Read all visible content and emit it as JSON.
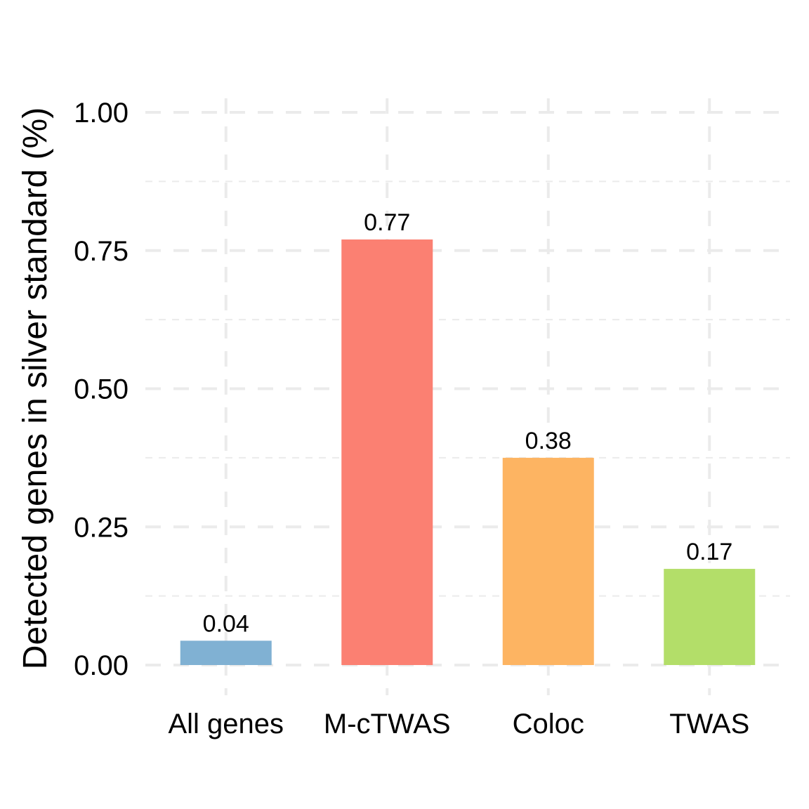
{
  "chart_data": {
    "type": "bar",
    "title": "",
    "xlabel": "",
    "ylabel": "Detected genes in silver standard (%)",
    "categories": [
      "All genes",
      "M-cTWAS",
      "Coloc",
      "TWAS"
    ],
    "values": [
      0.044,
      0.77,
      0.375,
      0.174
    ],
    "data_labels": [
      "0.04",
      "0.77",
      "0.38",
      "0.17"
    ],
    "colors": [
      "#80b1d3",
      "#fb8072",
      "#fdb462",
      "#b3de69"
    ],
    "ylim": [
      0,
      1.0
    ],
    "y_ticks": [
      0,
      0.25,
      0.5,
      0.75,
      1.0
    ],
    "y_tick_labels": [
      "0.00",
      "0.25",
      "0.50",
      "0.75",
      "1.00"
    ],
    "grid": true,
    "legend": "none"
  }
}
